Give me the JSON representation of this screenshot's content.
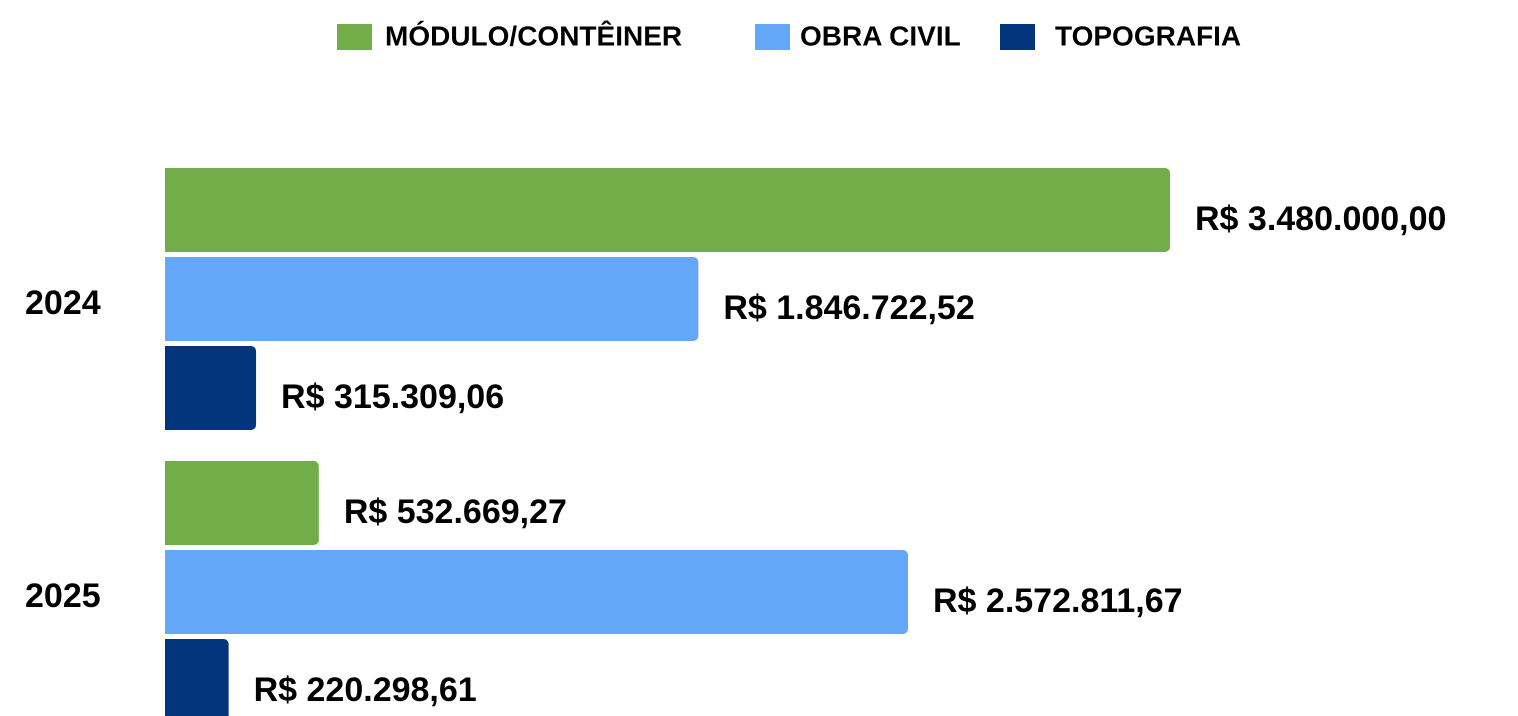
{
  "chart_data": {
    "type": "bar",
    "orientation": "horizontal",
    "categories": [
      "2024",
      "2025"
    ],
    "series": [
      {
        "name": "MÓDULO/CONTÊINER",
        "color": "#72ad4a",
        "values": [
          3480000.0,
          532669.27
        ],
        "value_labels": [
          "R$ 3.480.000,00",
          "R$ 532.669,27"
        ]
      },
      {
        "name": "OBRA CIVIL",
        "color": "#64a6f8",
        "values": [
          1846722.52,
          2572811.67
        ],
        "value_labels": [
          "R$ 1.846.722,52",
          "R$ 2.572.811,67"
        ]
      },
      {
        "name": "TOPOGRAFIA",
        "color": "#02357c",
        "values": [
          315309.06,
          220298.61
        ],
        "value_labels": [
          "R$ 315.309,06",
          "R$ 220.298,61"
        ]
      }
    ],
    "legend": "top"
  }
}
